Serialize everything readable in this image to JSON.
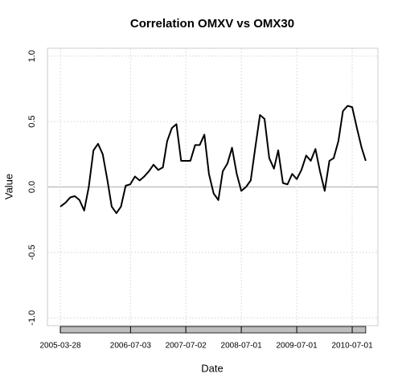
{
  "chart_data": {
    "type": "line",
    "title": "Correlation OMXV vs OMX30",
    "x_label": "Date",
    "y_label": "Value",
    "color": "#000000",
    "grid": true,
    "xlim": [
      "2005-01-02",
      "2010-12-17"
    ],
    "xticks": [
      "2005-03-28",
      "2006-07-03",
      "2007-07-02",
      "2008-07-01",
      "2009-07-01",
      "2010-07-01"
    ],
    "ylim": [
      -1.06,
      1.06
    ],
    "yticks": [
      {
        "value": -1,
        "label": "-1.0"
      },
      {
        "value": -0.5,
        "label": "-0.5"
      },
      {
        "value": 0,
        "label": "0.0"
      },
      {
        "value": 0.5,
        "label": "0.5"
      },
      {
        "value": 1,
        "label": "1.0"
      }
    ],
    "x": [
      "2005-03-28",
      "2005-05-01",
      "2005-06-01",
      "2005-07-01",
      "2005-08-01",
      "2005-09-01",
      "2005-10-01",
      "2005-11-01",
      "2005-12-01",
      "2006-01-01",
      "2006-02-01",
      "2006-03-01",
      "2006-04-01",
      "2006-05-01",
      "2006-06-01",
      "2006-07-01",
      "2006-08-01",
      "2006-09-01",
      "2006-10-01",
      "2006-11-01",
      "2006-12-01",
      "2007-01-01",
      "2007-02-01",
      "2007-03-01",
      "2007-04-01",
      "2007-05-01",
      "2007-06-01",
      "2007-07-01",
      "2007-08-01",
      "2007-09-01",
      "2007-10-01",
      "2007-11-01",
      "2007-12-01",
      "2008-01-01",
      "2008-02-01",
      "2008-03-01",
      "2008-04-01",
      "2008-05-01",
      "2008-06-01",
      "2008-07-01",
      "2008-08-01",
      "2008-09-01",
      "2008-10-01",
      "2008-11-01",
      "2008-12-01",
      "2009-01-01",
      "2009-02-01",
      "2009-03-01",
      "2009-04-01",
      "2009-05-01",
      "2009-06-01",
      "2009-07-01",
      "2009-08-01",
      "2009-09-01",
      "2009-10-01",
      "2009-11-01",
      "2009-12-01",
      "2010-01-01",
      "2010-02-01",
      "2010-03-01",
      "2010-04-01",
      "2010-05-01",
      "2010-06-01",
      "2010-07-01",
      "2010-08-01",
      "2010-09-01",
      "2010-09-28"
    ],
    "values": [
      -0.15,
      -0.12,
      -0.08,
      -0.07,
      -0.1,
      -0.18,
      0.0,
      0.28,
      0.33,
      0.25,
      0.05,
      -0.15,
      -0.2,
      -0.15,
      0.01,
      0.02,
      0.08,
      0.05,
      0.08,
      0.12,
      0.17,
      0.13,
      0.15,
      0.35,
      0.45,
      0.48,
      0.2,
      0.2,
      0.2,
      0.32,
      0.32,
      0.4,
      0.1,
      -0.05,
      -0.1,
      0.12,
      0.18,
      0.3,
      0.1,
      -0.03,
      0.0,
      0.05,
      0.3,
      0.55,
      0.52,
      0.22,
      0.14,
      0.28,
      0.03,
      0.02,
      0.1,
      0.06,
      0.13,
      0.24,
      0.2,
      0.29,
      0.12,
      -0.03,
      0.2,
      0.22,
      0.35,
      0.58,
      0.62,
      0.61,
      0.45,
      0.3,
      0.2
    ]
  }
}
